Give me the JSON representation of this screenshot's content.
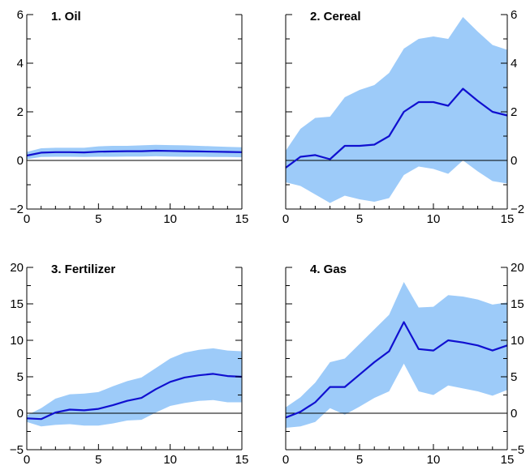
{
  "colors": {
    "band": "#9dcbf9",
    "median": "#1010d0"
  },
  "chart_data": [
    {
      "type": "area",
      "title": "1.  Oil",
      "x": [
        0,
        1,
        2,
        3,
        4,
        5,
        6,
        7,
        8,
        9,
        10,
        11,
        12,
        13,
        14,
        15
      ],
      "ylim": [
        -2,
        6
      ],
      "yticks": [
        -2,
        0,
        2,
        4,
        6
      ],
      "xticks": [
        0,
        5,
        10,
        15
      ],
      "ytick_side": "left",
      "series": [
        {
          "role": "upper",
          "values": [
            0.35,
            0.5,
            0.52,
            0.52,
            0.52,
            0.58,
            0.6,
            0.6,
            0.62,
            0.64,
            0.63,
            0.62,
            0.6,
            0.58,
            0.56,
            0.54
          ]
        },
        {
          "role": "median",
          "values": [
            0.2,
            0.32,
            0.34,
            0.34,
            0.33,
            0.36,
            0.37,
            0.38,
            0.38,
            0.4,
            0.39,
            0.38,
            0.37,
            0.36,
            0.35,
            0.34
          ]
        },
        {
          "role": "lower",
          "values": [
            0.05,
            0.14,
            0.15,
            0.15,
            0.14,
            0.15,
            0.15,
            0.16,
            0.16,
            0.17,
            0.16,
            0.15,
            0.15,
            0.14,
            0.14,
            0.13
          ]
        }
      ]
    },
    {
      "type": "area",
      "title": "2.  Cereal",
      "x": [
        0,
        1,
        2,
        3,
        4,
        5,
        6,
        7,
        8,
        9,
        10,
        11,
        12,
        13,
        14,
        15
      ],
      "ylim": [
        -2,
        6
      ],
      "yticks": [
        -2,
        0,
        2,
        4,
        6
      ],
      "xticks": [
        0,
        5,
        10,
        15
      ],
      "ytick_side": "right",
      "series": [
        {
          "role": "upper",
          "values": [
            0.4,
            1.3,
            1.75,
            1.8,
            2.6,
            2.9,
            3.1,
            3.6,
            4.6,
            5.0,
            5.1,
            5.0,
            5.9,
            5.3,
            4.75,
            4.55
          ]
        },
        {
          "role": "median",
          "values": [
            -0.3,
            0.15,
            0.22,
            0.05,
            0.6,
            0.6,
            0.65,
            1.0,
            2.0,
            2.4,
            2.4,
            2.25,
            2.95,
            2.45,
            2.0,
            1.85
          ]
        },
        {
          "role": "lower",
          "values": [
            -0.9,
            -1.05,
            -1.4,
            -1.75,
            -1.45,
            -1.6,
            -1.7,
            -1.55,
            -0.6,
            -0.25,
            -0.35,
            -0.55,
            0.0,
            -0.45,
            -0.85,
            -0.95
          ]
        }
      ]
    },
    {
      "type": "area",
      "title": "3.  Fertilizer",
      "x": [
        0,
        1,
        2,
        3,
        4,
        5,
        6,
        7,
        8,
        9,
        10,
        11,
        12,
        13,
        14,
        15
      ],
      "ylim": [
        -5,
        20
      ],
      "yticks": [
        -5,
        0,
        5,
        10,
        15,
        20
      ],
      "xticks": [
        0,
        5,
        10,
        15
      ],
      "ytick_side": "left",
      "series": [
        {
          "role": "upper",
          "values": [
            -0.3,
            0.7,
            2.0,
            2.6,
            2.7,
            2.9,
            3.7,
            4.4,
            4.9,
            6.2,
            7.5,
            8.3,
            8.7,
            8.9,
            8.6,
            8.5
          ]
        },
        {
          "role": "median",
          "values": [
            -0.7,
            -0.8,
            0.1,
            0.5,
            0.4,
            0.6,
            1.1,
            1.7,
            2.1,
            3.3,
            4.3,
            4.9,
            5.2,
            5.4,
            5.1,
            5.0
          ]
        },
        {
          "role": "lower",
          "values": [
            -1.2,
            -1.8,
            -1.6,
            -1.5,
            -1.7,
            -1.7,
            -1.4,
            -1.0,
            -0.9,
            0.1,
            1.0,
            1.4,
            1.7,
            1.8,
            1.5,
            1.5
          ]
        }
      ]
    },
    {
      "type": "area",
      "title": "4.  Gas",
      "x": [
        0,
        1,
        2,
        3,
        4,
        5,
        6,
        7,
        8,
        9,
        10,
        11,
        12,
        13,
        14,
        15
      ],
      "ylim": [
        -5,
        20
      ],
      "yticks": [
        -5,
        0,
        5,
        10,
        15,
        20
      ],
      "xticks": [
        0,
        5,
        10,
        15
      ],
      "ytick_side": "right",
      "series": [
        {
          "role": "upper",
          "values": [
            0.8,
            2.2,
            4.2,
            7.0,
            7.5,
            9.5,
            11.5,
            13.5,
            18.0,
            14.5,
            14.6,
            16.2,
            16.0,
            15.6,
            14.9,
            15.2
          ]
        },
        {
          "role": "median",
          "values": [
            -0.6,
            0.2,
            1.5,
            3.6,
            3.6,
            5.3,
            7.0,
            8.5,
            12.5,
            8.8,
            8.6,
            10.0,
            9.7,
            9.3,
            8.6,
            9.3
          ]
        },
        {
          "role": "lower",
          "values": [
            -2.0,
            -1.8,
            -1.2,
            0.7,
            -0.2,
            0.9,
            2.1,
            3.0,
            6.8,
            3.0,
            2.5,
            3.8,
            3.4,
            3.0,
            2.4,
            3.2
          ]
        }
      ]
    }
  ]
}
